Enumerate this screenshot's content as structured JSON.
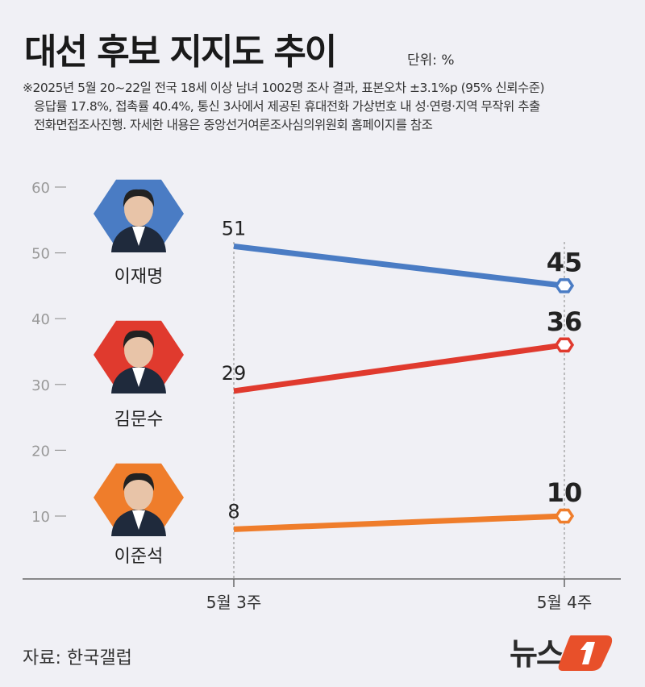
{
  "header": {
    "title": "대선 후보 지지도 추이",
    "unit": "단위: %",
    "notes": [
      "※2025년 5월 20~22일 전국 18세 이상 남녀 1002명 조사 결과, 표본오차 ±3.1%p (95% 신뢰수준)",
      "응답률 17.8%, 접촉률 40.4%, 통신 3사에서 제공된 휴대전화 가상번호 내 성·연령·지역 무작위 추출",
      "전화면접조사진행. 자세한 내용은 중앙선거여론조사심의위원회 홈페이지를 참조"
    ]
  },
  "chart_data": {
    "type": "line",
    "title": "대선 후보 지지도 추이",
    "categories": [
      "5월 3주",
      "5월 4주"
    ],
    "yticks": [
      10,
      20,
      30,
      40,
      50,
      60
    ],
    "ylim": [
      0,
      60
    ],
    "grid": false,
    "series": [
      {
        "name": "이재명",
        "values": [
          51,
          45
        ],
        "color": "#4a7cc4"
      },
      {
        "name": "김문수",
        "values": [
          29,
          36
        ],
        "color": "#e03a2e"
      },
      {
        "name": "이준석",
        "values": [
          8,
          10
        ],
        "color": "#ef7d2b"
      }
    ]
  },
  "footer": {
    "source": "자료: 한국갤럽",
    "logo_text": "뉴스1",
    "logo_color": "#e8502a"
  }
}
